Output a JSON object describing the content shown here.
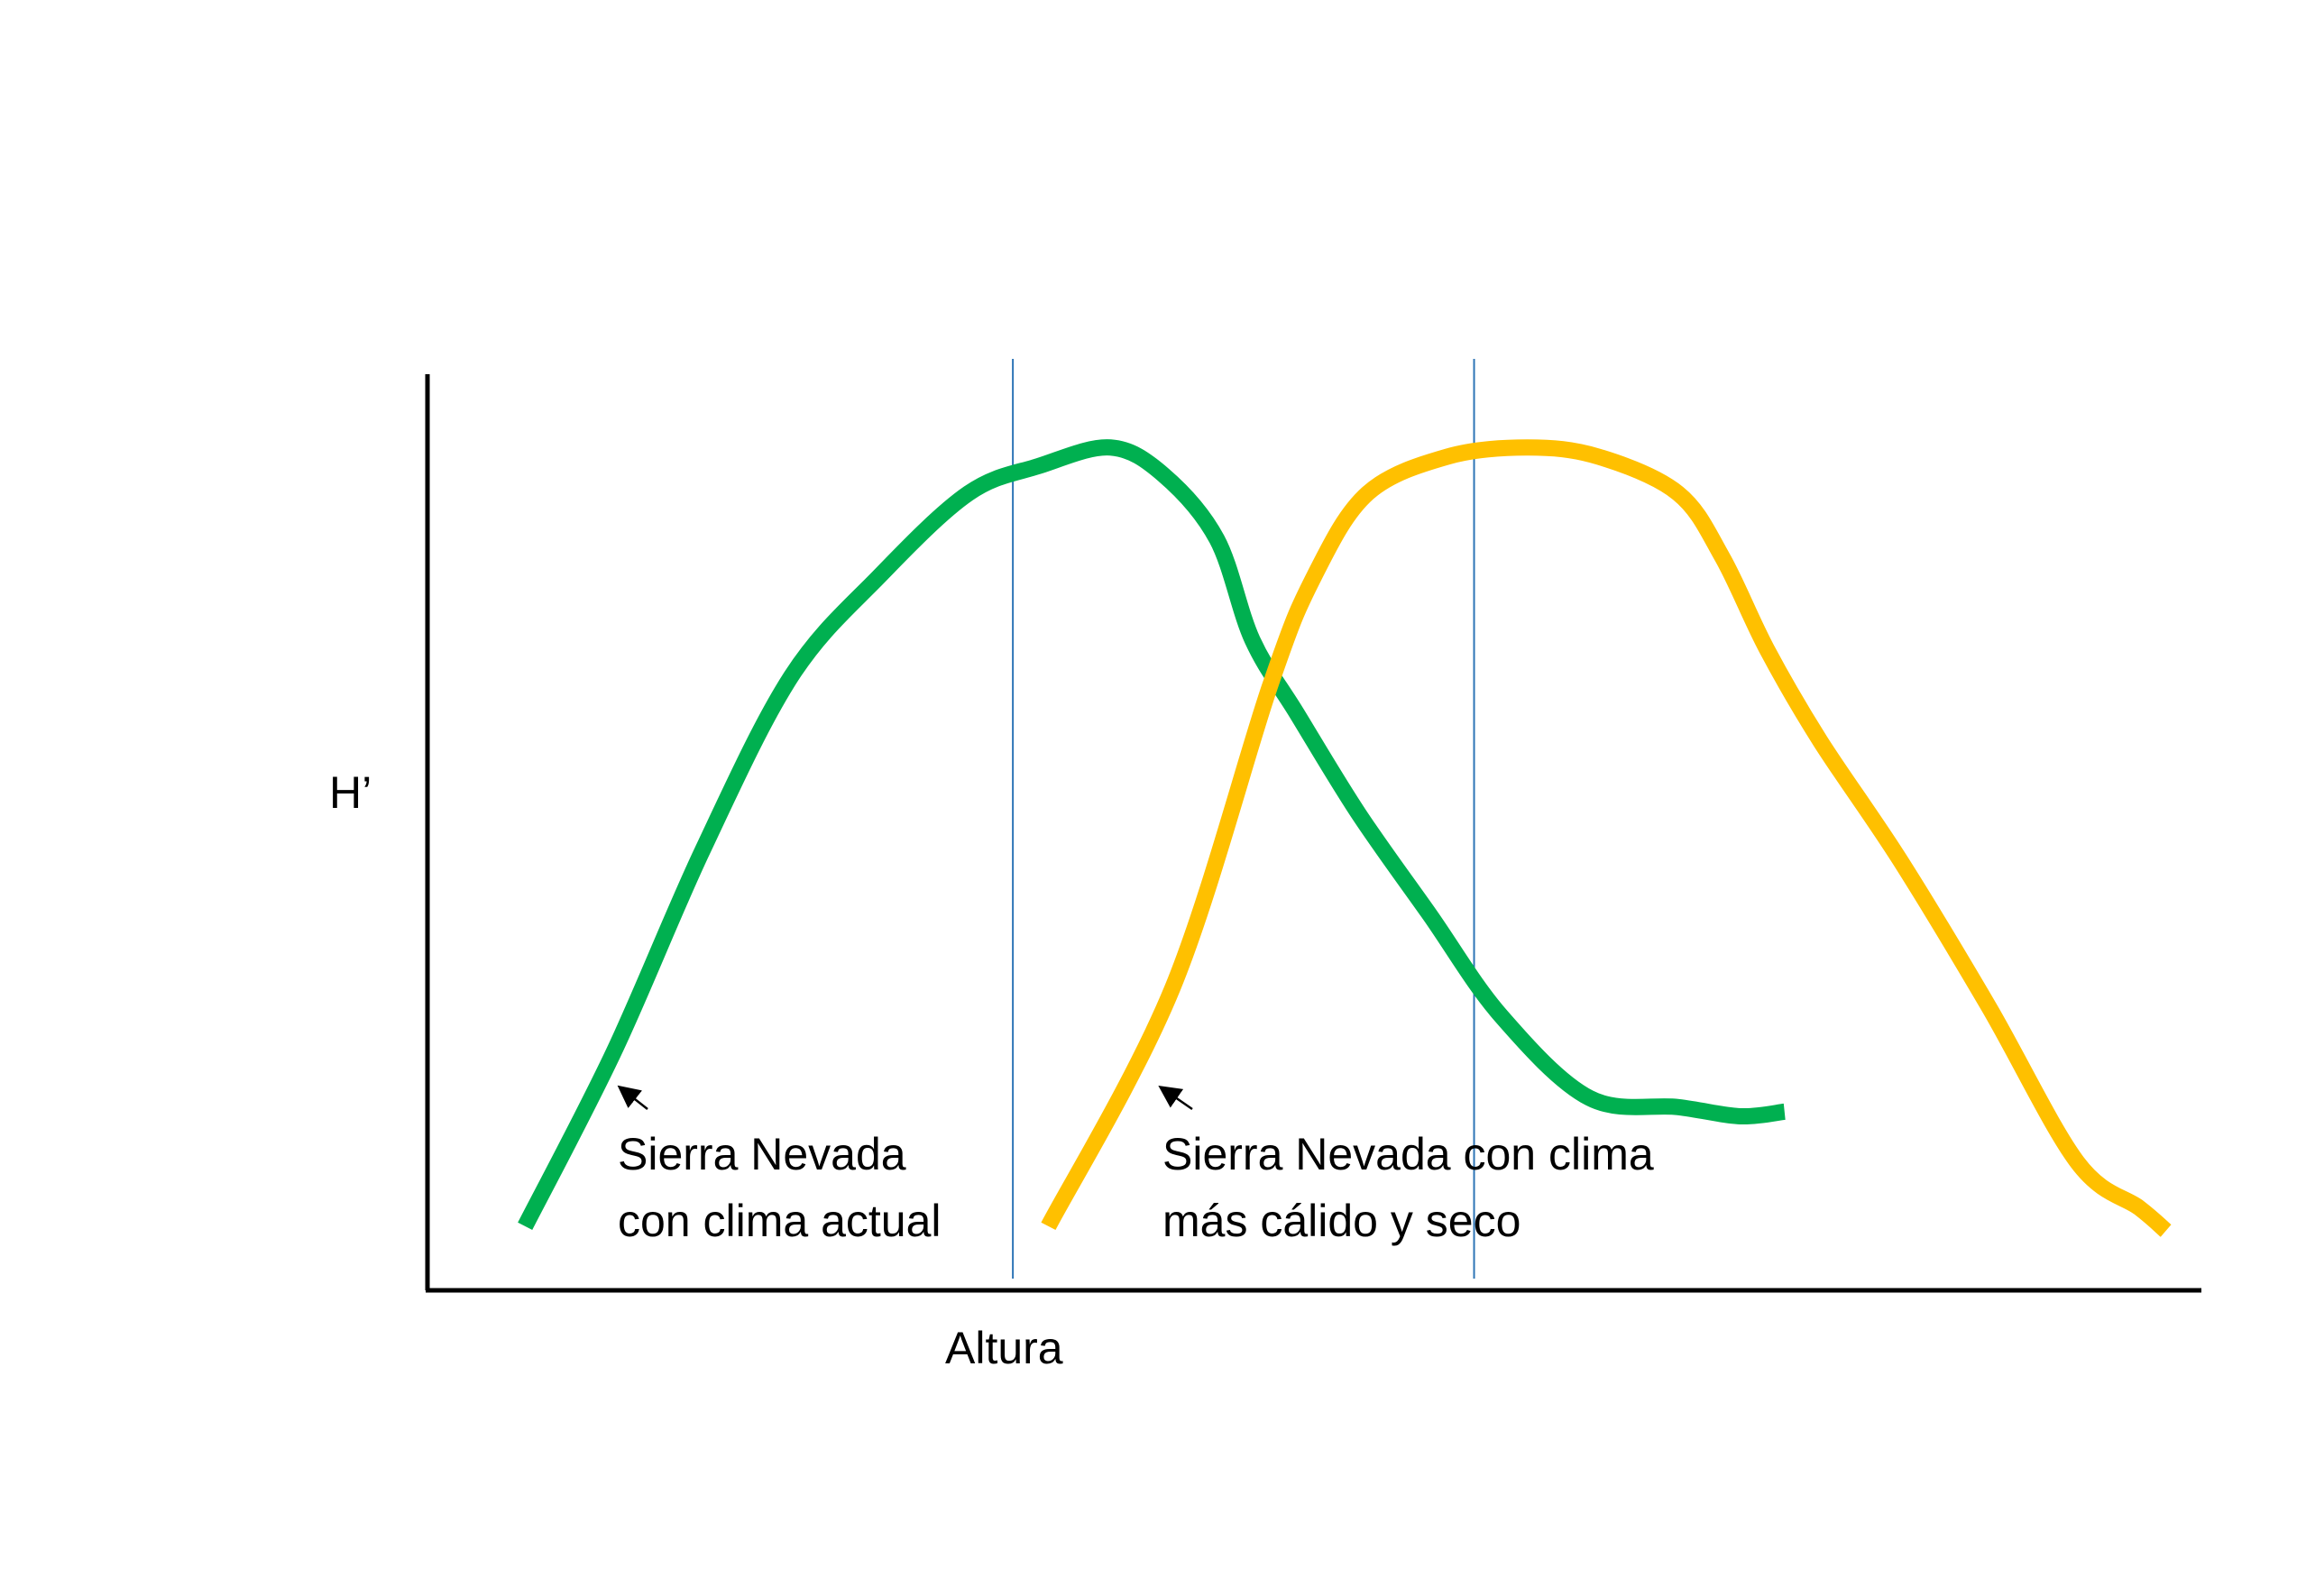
{
  "chart_data": {
    "type": "line",
    "title": "",
    "xlabel": "Altura",
    "ylabel": "H’",
    "grid": false,
    "legend": "none",
    "xlim": [
      0,
      1
    ],
    "ylim": [
      0,
      1
    ],
    "series": [
      {
        "color": "#00B050",
        "x": [
          0.055,
          0.105,
          0.155,
          0.205,
          0.255,
          0.305,
          0.345,
          0.385,
          0.415,
          0.445,
          0.465,
          0.49,
          0.525,
          0.565,
          0.605,
          0.655,
          0.705,
          0.74,
          0.765
        ],
        "y": [
          0.07,
          0.26,
          0.48,
          0.67,
          0.78,
          0.87,
          0.9,
          0.92,
          0.89,
          0.82,
          0.71,
          0.63,
          0.52,
          0.41,
          0.3,
          0.21,
          0.2,
          0.19,
          0.195
        ]
      },
      {
        "color": "#FFC000",
        "x": [
          0.35,
          0.42,
          0.475,
          0.5,
          0.53,
          0.575,
          0.62,
          0.66,
          0.705,
          0.73,
          0.755,
          0.785,
          0.83,
          0.88,
          0.93,
          0.965,
          0.98
        ],
        "y": [
          0.07,
          0.33,
          0.66,
          0.78,
          0.87,
          0.91,
          0.92,
          0.91,
          0.87,
          0.8,
          0.7,
          0.6,
          0.47,
          0.31,
          0.14,
          0.09,
          0.065
        ]
      }
    ],
    "vlines": [
      {
        "x": 0.33,
        "color": "#2E75B6"
      },
      {
        "x": 0.59,
        "color": "#2E75B6"
      }
    ],
    "annotations": [
      {
        "lines": [
          "Sierra Nevada",
          "con clima actual"
        ],
        "target": {
          "x": 0.105,
          "y": 0.26
        }
      },
      {
        "lines": [
          "Sierra Nevada con clima",
          "más cálido y seco"
        ],
        "target": {
          "x": 0.41,
          "y": 0.26
        }
      }
    ]
  }
}
